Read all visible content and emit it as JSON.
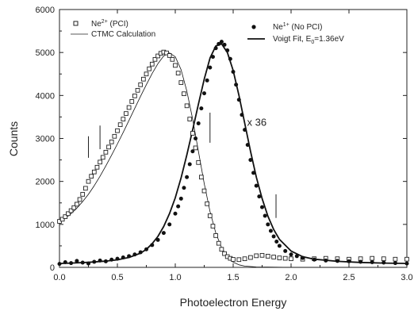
{
  "chart_data": {
    "type": "scatter",
    "xlabel": "Photoelectron Energy",
    "ylabel": "Counts",
    "xlim": [
      0.0,
      3.0
    ],
    "ylim": [
      0,
      6000
    ],
    "x_ticks": [
      "0.0",
      "0.5",
      "1.0",
      "1.5",
      "2.0",
      "2.5",
      "3.0"
    ],
    "y_ticks": [
      "0",
      "1000",
      "2000",
      "3000",
      "4000",
      "5000",
      "6000"
    ],
    "grid": false,
    "annotations": [
      {
        "text": "x 36",
        "x": 1.62,
        "y": 3300
      }
    ],
    "markers": [
      {
        "x": 0.25,
        "y1": 2550,
        "y2": 3050
      },
      {
        "x": 0.35,
        "y1": 2750,
        "y2": 3300
      },
      {
        "x": 1.3,
        "y1": 2900,
        "y2": 3600
      },
      {
        "x": 1.87,
        "y1": 1150,
        "y2": 1700
      }
    ],
    "legend": [
      {
        "label": "Ne",
        "sup": "2+",
        "after": " (PCI)",
        "style": "open-square",
        "placement": "top-left"
      },
      {
        "label": "CTMC Calculation",
        "style": "thin-line",
        "placement": "top-left"
      },
      {
        "label": "Ne",
        "sup": "1+",
        "after": " (No PCI)",
        "style": "filled-circle",
        "placement": "top-right"
      },
      {
        "label": "Voigt Fit, E",
        "sub": "0",
        "after": "=1.36eV",
        "style": "thick-line",
        "placement": "top-right"
      }
    ],
    "series": [
      {
        "name": "Ne2+ (PCI)",
        "style": "open-square",
        "x": [
          0.0,
          0.025,
          0.05,
          0.075,
          0.1,
          0.125,
          0.15,
          0.175,
          0.2,
          0.225,
          0.25,
          0.275,
          0.3,
          0.325,
          0.35,
          0.375,
          0.4,
          0.425,
          0.45,
          0.475,
          0.5,
          0.525,
          0.55,
          0.575,
          0.6,
          0.625,
          0.65,
          0.675,
          0.7,
          0.725,
          0.75,
          0.775,
          0.8,
          0.825,
          0.85,
          0.875,
          0.9,
          0.925,
          0.95,
          0.975,
          1.0,
          1.025,
          1.05,
          1.075,
          1.1,
          1.125,
          1.15,
          1.175,
          1.2,
          1.225,
          1.25,
          1.275,
          1.3,
          1.325,
          1.35,
          1.375,
          1.4,
          1.425,
          1.45,
          1.475,
          1.5,
          1.55,
          1.6,
          1.65,
          1.7,
          1.75,
          1.8,
          1.85,
          1.9,
          1.95,
          2.0,
          2.1,
          2.2,
          2.3,
          2.4,
          2.5,
          2.6,
          2.7,
          2.8,
          2.9,
          3.0
        ],
        "values": [
          1070,
          1120,
          1180,
          1250,
          1320,
          1390,
          1470,
          1580,
          1700,
          1840,
          2000,
          2120,
          2220,
          2330,
          2450,
          2560,
          2680,
          2800,
          2920,
          3050,
          3180,
          3320,
          3450,
          3580,
          3720,
          3860,
          3990,
          4120,
          4250,
          4380,
          4500,
          4620,
          4730,
          4840,
          4920,
          4980,
          5010,
          4990,
          4930,
          4840,
          4700,
          4520,
          4300,
          4040,
          3760,
          3450,
          3120,
          2780,
          2440,
          2100,
          1780,
          1480,
          1200,
          960,
          740,
          560,
          420,
          320,
          250,
          210,
          185,
          180,
          200,
          230,
          270,
          280,
          260,
          240,
          220,
          210,
          200,
          190,
          200,
          210,
          200,
          190,
          200,
          210,
          200,
          190,
          190
        ]
      },
      {
        "name": "CTMC Calculation",
        "style": "thin-line",
        "x": [
          0.0,
          0.05,
          0.1,
          0.15,
          0.2,
          0.25,
          0.3,
          0.35,
          0.4,
          0.45,
          0.5,
          0.55,
          0.6,
          0.65,
          0.7,
          0.75,
          0.8,
          0.85,
          0.9,
          0.95,
          1.0,
          1.05,
          1.1,
          1.15,
          1.2,
          1.25,
          1.3,
          1.35,
          1.4,
          1.45,
          1.5,
          1.55,
          1.6,
          1.7,
          1.8,
          2.0,
          2.5,
          3.0
        ],
        "values": [
          1050,
          1140,
          1250,
          1380,
          1530,
          1700,
          1900,
          2120,
          2360,
          2610,
          2870,
          3140,
          3420,
          3700,
          3980,
          4250,
          4510,
          4740,
          4920,
          4990,
          4900,
          4600,
          4100,
          3450,
          2700,
          1950,
          1300,
          800,
          460,
          240,
          120,
          60,
          30,
          10,
          5,
          0,
          0,
          0
        ]
      },
      {
        "name": "Ne1+ (No PCI)",
        "style": "filled-circle",
        "x": [
          0.0,
          0.05,
          0.1,
          0.15,
          0.2,
          0.25,
          0.3,
          0.35,
          0.4,
          0.45,
          0.5,
          0.55,
          0.6,
          0.65,
          0.7,
          0.75,
          0.8,
          0.85,
          0.9,
          0.95,
          1.0,
          1.025,
          1.05,
          1.075,
          1.1,
          1.125,
          1.15,
          1.175,
          1.2,
          1.225,
          1.25,
          1.275,
          1.3,
          1.325,
          1.35,
          1.375,
          1.4,
          1.425,
          1.45,
          1.475,
          1.5,
          1.525,
          1.55,
          1.575,
          1.6,
          1.625,
          1.65,
          1.675,
          1.7,
          1.725,
          1.75,
          1.775,
          1.8,
          1.825,
          1.85,
          1.875,
          1.9,
          1.95,
          2.0,
          2.05,
          2.1,
          2.2,
          2.3,
          2.4,
          2.5,
          2.6,
          2.7,
          2.8,
          2.9,
          3.0
        ],
        "values": [
          80,
          120,
          100,
          150,
          110,
          90,
          130,
          160,
          140,
          180,
          200,
          230,
          260,
          300,
          350,
          420,
          520,
          640,
          800,
          1000,
          1250,
          1420,
          1600,
          1850,
          2100,
          2400,
          2700,
          3000,
          3350,
          3700,
          4050,
          4350,
          4650,
          4900,
          5100,
          5200,
          5250,
          5180,
          5050,
          4850,
          4550,
          4250,
          3900,
          3550,
          3200,
          2850,
          2500,
          2200,
          1900,
          1650,
          1400,
          1200,
          1000,
          850,
          720,
          600,
          500,
          380,
          300,
          260,
          220,
          180,
          160,
          150,
          140,
          130,
          120,
          110,
          100,
          90
        ]
      },
      {
        "name": "Voigt Fit, E0=1.36eV",
        "style": "thick-line",
        "x": [
          0.0,
          0.1,
          0.2,
          0.3,
          0.4,
          0.5,
          0.6,
          0.7,
          0.75,
          0.8,
          0.85,
          0.9,
          0.95,
          1.0,
          1.05,
          1.1,
          1.15,
          1.2,
          1.25,
          1.3,
          1.35,
          1.4,
          1.45,
          1.5,
          1.55,
          1.6,
          1.65,
          1.7,
          1.75,
          1.8,
          1.85,
          1.9,
          2.0,
          2.1,
          2.2,
          2.4,
          2.6,
          2.8,
          3.0
        ],
        "values": [
          90,
          100,
          110,
          125,
          145,
          175,
          230,
          330,
          420,
          550,
          720,
          950,
          1250,
          1620,
          2080,
          2620,
          3200,
          3800,
          4380,
          4870,
          5150,
          5200,
          5000,
          4580,
          4000,
          3350,
          2700,
          2100,
          1600,
          1190,
          880,
          650,
          380,
          250,
          190,
          140,
          115,
          100,
          90
        ]
      }
    ]
  }
}
